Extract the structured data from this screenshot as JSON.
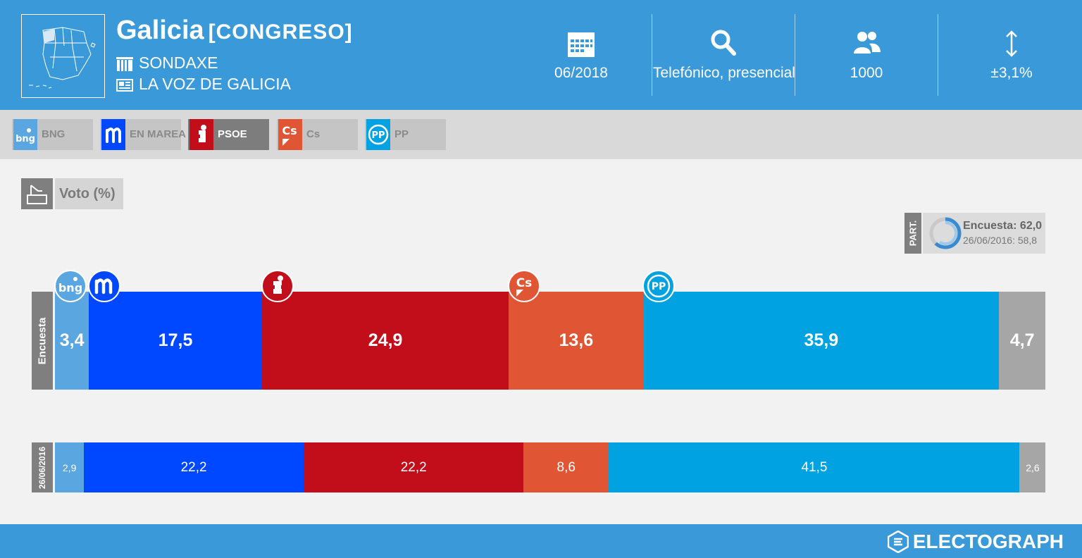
{
  "header": {
    "title": "Galicia",
    "subtitle": "[CONGRESO]",
    "pollster": "SONDAXE",
    "media": "LA VOZ DE GALICIA",
    "stats": [
      {
        "icon": "calendar-icon",
        "value": "06/2018"
      },
      {
        "icon": "magnifier-icon",
        "value": "Telefónico, presencial"
      },
      {
        "icon": "people-icon",
        "value": "1000"
      },
      {
        "icon": "updown-arrow-icon",
        "value": "±3,1%"
      }
    ]
  },
  "legend": [
    {
      "label": "BNG",
      "active": false
    },
    {
      "label": "EN MAREA",
      "active": false
    },
    {
      "label": "PSOE",
      "active": true
    },
    {
      "label": "Cs",
      "active": false
    },
    {
      "label": "PP",
      "active": false
    }
  ],
  "voto_label": "Voto (%)",
  "participation": {
    "tag": "PART.",
    "survey": "Encuesta: 62,0",
    "previous": "26/06/2016: 58,8",
    "survey_value": 62.0,
    "previous_value": 58.8
  },
  "chart_data": {
    "type": "bar",
    "orientation": "horizontal-stacked",
    "categories": [
      "Encuesta",
      "26/06/2016"
    ],
    "series": [
      {
        "name": "BNG",
        "color": "#5aa6e0",
        "values": [
          3.4,
          2.9
        ],
        "labels": [
          "3,4",
          "2,9"
        ]
      },
      {
        "name": "EN MAREA",
        "color": "#0048ff",
        "values": [
          17.5,
          22.2
        ],
        "labels": [
          "17,5",
          "22,2"
        ]
      },
      {
        "name": "PSOE",
        "color": "#c20d1a",
        "values": [
          24.9,
          22.2
        ],
        "labels": [
          "24,9",
          "22,2"
        ]
      },
      {
        "name": "Cs",
        "color": "#e05533",
        "values": [
          13.6,
          8.6
        ],
        "labels": [
          "13,6",
          "8,6"
        ]
      },
      {
        "name": "PP",
        "color": "#00a2e2",
        "values": [
          35.9,
          41.5
        ],
        "labels": [
          "35,9",
          "41,5"
        ]
      },
      {
        "name": "",
        "color": "#a6a6a6",
        "values": [
          4.7,
          2.6
        ],
        "labels": [
          "4,7",
          "2,6"
        ]
      }
    ]
  },
  "footer": {
    "brand": "ELECTOGRAPH"
  }
}
